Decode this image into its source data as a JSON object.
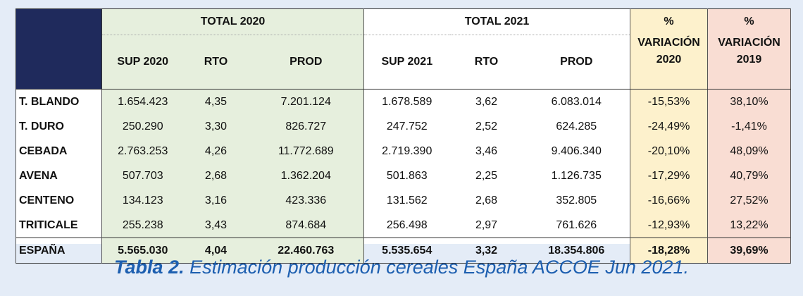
{
  "table": {
    "groups": {
      "total2020": "TOTAL 2020",
      "total2021": "TOTAL 2021"
    },
    "var2020": {
      "line1": "%",
      "line2": "VARIACIÓN",
      "line3": "2020"
    },
    "var2019": {
      "line1": "%",
      "line2": "VARIACIÓN",
      "line3": "2019"
    },
    "columns": [
      "SUP 2020",
      "RTO",
      "PROD",
      "SUP 2021",
      "RTO",
      "PROD"
    ],
    "rows": [
      [
        "T. BLANDO",
        "1.654.423",
        "4,35",
        "7.201.124",
        "1.678.589",
        "3,62",
        "6.083.014",
        "-15,53%",
        "38,10%"
      ],
      [
        "T. DURO",
        "250.290",
        "3,30",
        "826.727",
        "247.752",
        "2,52",
        "624.285",
        "-24,49%",
        "-1,41%"
      ],
      [
        "CEBADA",
        "2.763.253",
        "4,26",
        "11.772.689",
        "2.719.390",
        "3,46",
        "9.406.340",
        "-20,10%",
        "48,09%"
      ],
      [
        "AVENA",
        "507.703",
        "2,68",
        "1.362.204",
        "501.863",
        "2,25",
        "1.126.735",
        "-17,29%",
        "40,79%"
      ],
      [
        "CENTENO",
        "134.123",
        "3,16",
        "423.336",
        "131.562",
        "2,68",
        "352.805",
        "-16,66%",
        "27,52%"
      ],
      [
        "TRITICALE",
        "255.238",
        "3,43",
        "874.684",
        "256.498",
        "2,97",
        "761.626",
        "-12,93%",
        "13,22%"
      ]
    ],
    "total": [
      "ESPAÑA",
      "5.565.030",
      "4,04",
      "22.460.763",
      "5.535.654",
      "3,32",
      "18.354.806",
      "-18,28%",
      "39,69%"
    ]
  },
  "caption": {
    "label": "Tabla 2.",
    "text": " Estimación producción cereales España ACCOE Jun 2021."
  },
  "colors": {
    "header_dark": "#1f2a5c",
    "group_2020": "#e6efdd",
    "variation_2020": "#fdf1cc",
    "variation_2019": "#f9ddd3",
    "caption": "#1d5fb0",
    "page_background": "#e4ecf7"
  }
}
